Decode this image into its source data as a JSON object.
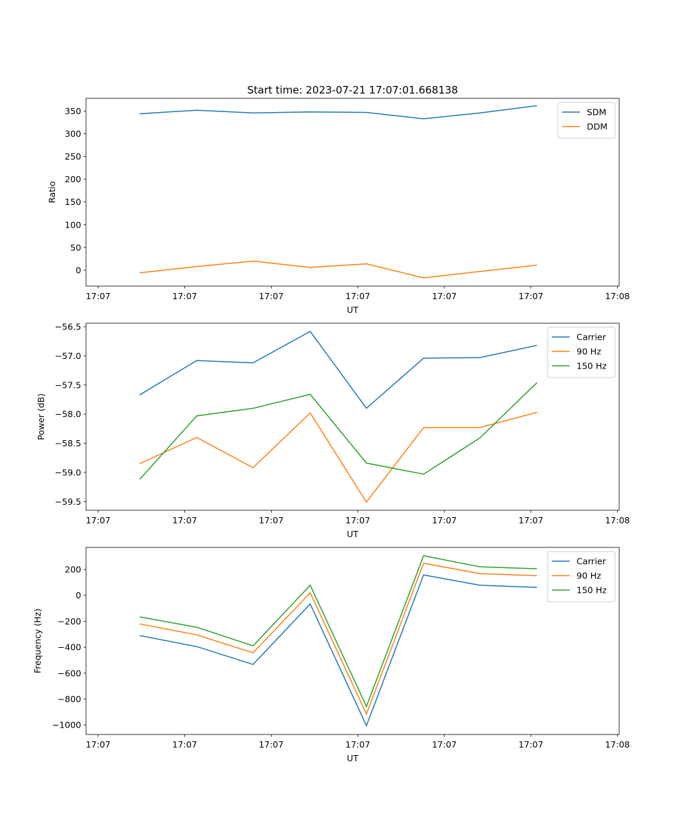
{
  "chart_data": [
    {
      "type": "line",
      "title": "Start time: 2023-07-21 17:07:01.668138",
      "xlabel": "UT",
      "ylabel": "Ratio",
      "x": [
        4.8,
        11.4,
        17.9,
        24.5,
        31.0,
        37.6,
        44.1,
        50.7
      ],
      "xlim": [
        -1.4,
        60.2
      ],
      "xticks": [
        0,
        10,
        20,
        30,
        40,
        50,
        60
      ],
      "xtick_labels": [
        "17:07",
        "17:07",
        "17:07",
        "17:07",
        "17:07",
        "17:07",
        "17:08"
      ],
      "ylim": [
        -35,
        378
      ],
      "yticks": [
        0,
        50,
        100,
        150,
        200,
        250,
        300,
        350
      ],
      "legend": "top-right",
      "series": [
        {
          "name": "SDM",
          "color": "#1f77b4",
          "values": [
            344,
            352,
            346,
            348,
            347,
            333,
            346,
            362
          ]
        },
        {
          "name": "DDM",
          "color": "#ff7f0e",
          "values": [
            -6,
            8,
            20,
            6,
            14,
            -17,
            -3,
            11
          ]
        }
      ]
    },
    {
      "type": "line",
      "xlabel": "UT",
      "ylabel": "Power (dB)",
      "x": [
        4.8,
        11.4,
        17.9,
        24.5,
        31.0,
        37.6,
        44.1,
        50.7
      ],
      "xlim": [
        -1.4,
        60.2
      ],
      "xticks": [
        0,
        10,
        20,
        30,
        40,
        50,
        60
      ],
      "xtick_labels": [
        "17:07",
        "17:07",
        "17:07",
        "17:07",
        "17:07",
        "17:07",
        "17:08"
      ],
      "ylim": [
        -59.65,
        -56.44
      ],
      "yticks": [
        -59.5,
        -59.0,
        -58.5,
        -58.0,
        -57.5,
        -57.0,
        -56.5
      ],
      "ytick_labels": [
        "−59.5",
        "−59.0",
        "−58.5",
        "−58.0",
        "−57.5",
        "−57.0",
        "−56.5"
      ],
      "legend": "top-right",
      "series": [
        {
          "name": "Carrier",
          "color": "#1f77b4",
          "values": [
            -57.67,
            -57.08,
            -57.12,
            -56.58,
            -57.9,
            -57.04,
            -57.03,
            -56.82
          ]
        },
        {
          "name": "90 Hz",
          "color": "#ff7f0e",
          "values": [
            -58.85,
            -58.4,
            -58.92,
            -57.98,
            -59.51,
            -58.23,
            -58.23,
            -57.97
          ]
        },
        {
          "name": "150 Hz",
          "color": "#2ca02c",
          "values": [
            -59.12,
            -58.03,
            -57.9,
            -57.66,
            -58.84,
            -59.03,
            -58.41,
            -57.46
          ]
        }
      ]
    },
    {
      "type": "line",
      "xlabel": "UT",
      "ylabel": "Frequency (Hz)",
      "x": [
        4.8,
        11.4,
        17.9,
        24.5,
        31.0,
        37.6,
        44.1,
        50.7
      ],
      "xlim": [
        -1.4,
        60.2
      ],
      "xticks": [
        0,
        10,
        20,
        30,
        40,
        50,
        60
      ],
      "xtick_labels": [
        "17:07",
        "17:07",
        "17:07",
        "17:07",
        "17:07",
        "17:07",
        "17:08"
      ],
      "ylim": [
        -1073,
        370
      ],
      "yticks": [
        -1000,
        -800,
        -600,
        -400,
        -200,
        0,
        200
      ],
      "ytick_labels": [
        "−1000",
        "−800",
        "−600",
        "−400",
        "−200",
        "0",
        "200"
      ],
      "legend": "top-right",
      "series": [
        {
          "name": "Carrier",
          "color": "#1f77b4",
          "values": [
            -310,
            -395,
            -533,
            -66,
            -1005,
            158,
            78,
            62
          ]
        },
        {
          "name": "90 Hz",
          "color": "#ff7f0e",
          "values": [
            -220,
            -305,
            -443,
            20,
            -915,
            248,
            168,
            152
          ]
        },
        {
          "name": "150 Hz",
          "color": "#2ca02c",
          "values": [
            -166,
            -246,
            -389,
            78,
            -857,
            306,
            221,
            205
          ]
        }
      ]
    }
  ]
}
